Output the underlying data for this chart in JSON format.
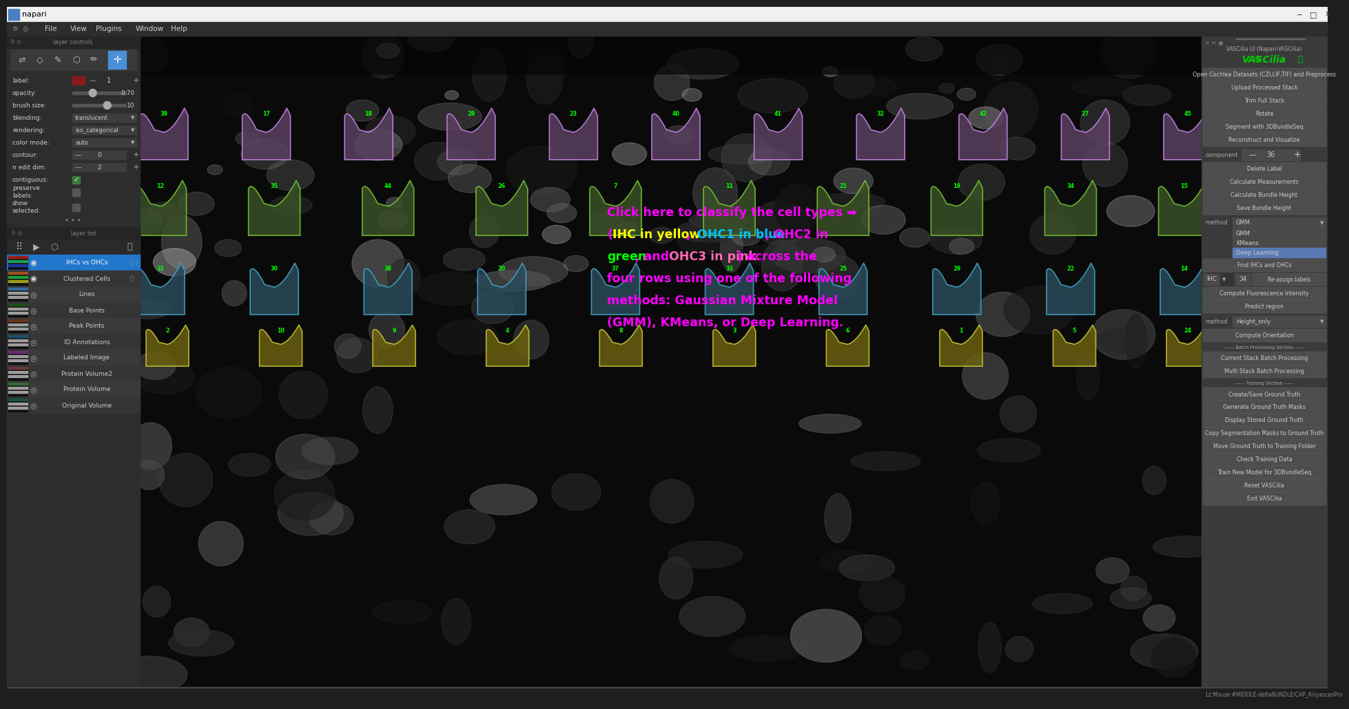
{
  "title": "napari",
  "fig_width": 19.17,
  "fig_height": 10.1,
  "bg_color": "#1e1e1e",
  "titlebar_bg": "#f0f0f0",
  "titlebar_text": "napari",
  "menubar_bg": "#2d2d2d",
  "menubar_items": [
    "File",
    "View",
    "Plugins",
    "Window",
    "Help"
  ],
  "left_panel_bg": "#2d2d2d",
  "layer_items": [
    "IHCs vs OHCs",
    "Clustered Cells",
    "Lines",
    "Base Points",
    "Peak Points",
    "ID Annotations",
    "Labeled Image",
    "Protein Volume2",
    "Protein Volume",
    "Original Volume"
  ],
  "layer_selected": "IHCs vs OHCs",
  "right_panel_bg": "#3a3a3a",
  "right_title": "VASCilia UI (Napari-VASCilia)",
  "right_subtitle": "©VASCilia✨",
  "right_buttons": [
    "Open Cochlea Datasets (CZI,LIF,TIF) and Preprocess",
    "Upload Processed Stack",
    "Trim Full Stack",
    "Rotate",
    "Segment with 3DBundleSeq",
    "Reconstruct and Visualize"
  ],
  "component_label": "component",
  "component_value": "36",
  "right_buttons2": [
    "Delete Label",
    "Calculate Measurements",
    "Calculate Bundle Height",
    "Save Bundle Height"
  ],
  "method_label": "method",
  "method_value": "GMM",
  "method_dropdown_items": [
    "GMM",
    "KMeans",
    "Deep Learning"
  ],
  "method_selected": "Deep Learning",
  "find_button": "Find IHCs and OHCs",
  "ihc_label": "IHC",
  "ihc_value": "34",
  "reassign_button": "Re-assign labels",
  "right_buttons3": [
    "Compute Fluorescence Intensity",
    "Predict region"
  ],
  "method2_label": "method",
  "method2_value": "Height_only",
  "right_buttons4": [
    "Compute Orientation",
    "---Batch Processing Section---",
    "Current Stack Batch Processing",
    "Multi Stack Batch Processing",
    "---Training Section---",
    "Create/Save Ground Truth",
    "Generate Ground Truth Masks",
    "Display Stored Ground Truth",
    "Copy Segmentation Masks to Ground Truth",
    "Move Ground Truth to Training Folder",
    "Check Training Data",
    "Train New Model for 3DBundleSeq",
    "Reset VASCilia",
    "Exit VASCilia"
  ],
  "annotation_colors": {
    "default": "#ff00ff",
    "yellow": "#ffff00",
    "blue": "#00bfff",
    "green": "#00ff00",
    "pink": "#ff69b4"
  },
  "status_bar_text": "1z:Mouse #MIDDLE-deltaBUNDLE/CAP_AiryascanPro",
  "label_controls": {
    "label_color": "#8b1a1a",
    "label_value": "1",
    "opacity_value": "0.70",
    "brush_size": "10",
    "blending": "translucent",
    "rendering": "iso_categorical",
    "color_mode": "auto",
    "contour": "0",
    "n_edit_dim": "2"
  },
  "cell_rows": {
    "row1_nums": [
      39,
      17,
      18,
      28,
      23,
      40,
      41,
      32,
      42,
      27,
      45
    ],
    "row2_nums": [
      12,
      35,
      44,
      26,
      7,
      11,
      21,
      19,
      34,
      15
    ],
    "row3_nums": [
      31,
      30,
      38,
      20,
      37,
      33,
      25,
      29,
      22,
      14
    ],
    "row4_nums": [
      2,
      10,
      9,
      4,
      8,
      3,
      6,
      1,
      5,
      24
    ],
    "pink_fill": "#5a4060",
    "pink_border": "#cc88ee",
    "green_fill": "#3a5028",
    "green_border": "#77cc33",
    "teal_fill": "#2a4a5a",
    "teal_border": "#44aacc",
    "yellow_fill": "#6a6010",
    "yellow_border": "#cccc33"
  }
}
